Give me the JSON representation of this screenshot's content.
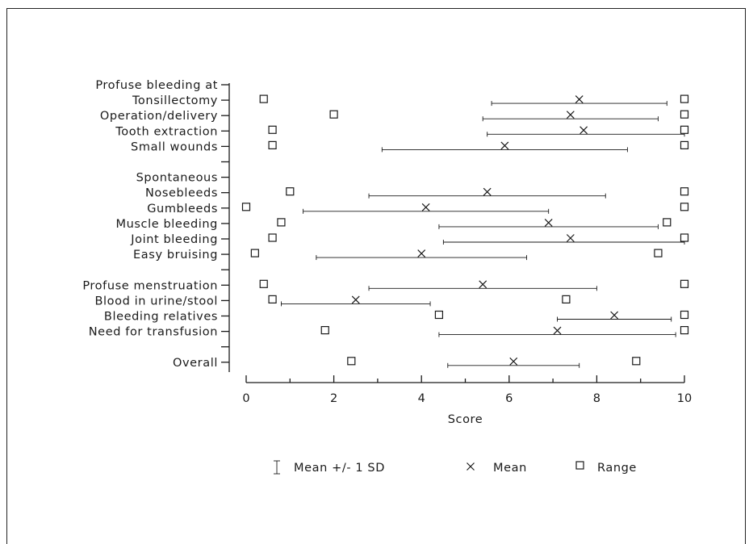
{
  "chart_data": {
    "type": "scatter",
    "xlabel": "Score",
    "xlim": [
      0,
      10
    ],
    "xticks": [
      "0",
      "2",
      "4",
      "6",
      "8",
      "10"
    ],
    "legend": {
      "placement": "bottom",
      "items": [
        {
          "symbol": "I",
          "label": "Mean +/- 1 SD"
        },
        {
          "symbol": "×",
          "label": "Mean"
        },
        {
          "symbol": "□",
          "label": "Range"
        }
      ]
    },
    "rows": [
      {
        "label": "Profuse bleeding at"
      },
      {
        "label": "Tonsillectomy",
        "mean": 7.6,
        "sd_low": 5.6,
        "sd_high": 9.6,
        "min": 0.4,
        "max": 10
      },
      {
        "label": "Operation/delivery",
        "mean": 7.4,
        "sd_low": 5.4,
        "sd_high": 9.4,
        "min": 2.0,
        "max": 10
      },
      {
        "label": "Tooth extraction",
        "mean": 7.7,
        "sd_low": 5.5,
        "sd_high": 10,
        "min": 0.6,
        "max": 10
      },
      {
        "label": "Small wounds",
        "mean": 5.9,
        "sd_low": 3.1,
        "sd_high": 8.7,
        "min": 0.6,
        "max": 10
      },
      {
        "label": ""
      },
      {
        "label": "Spontaneous"
      },
      {
        "label": "Nosebleeds",
        "mean": 5.5,
        "sd_low": 2.8,
        "sd_high": 8.2,
        "min": 1.0,
        "max": 10
      },
      {
        "label": "Gumbleeds",
        "mean": 4.1,
        "sd_low": 1.3,
        "sd_high": 6.9,
        "min": 0.0,
        "max": 10
      },
      {
        "label": "Muscle bleeding",
        "mean": 6.9,
        "sd_low": 4.4,
        "sd_high": 9.4,
        "min": 0.8,
        "max": 9.6
      },
      {
        "label": "Joint bleeding",
        "mean": 7.4,
        "sd_low": 4.5,
        "sd_high": 10,
        "min": 0.6,
        "max": 10
      },
      {
        "label": "Easy bruising",
        "mean": 4.0,
        "sd_low": 1.6,
        "sd_high": 6.4,
        "min": 0.2,
        "max": 9.4
      },
      {
        "label": ""
      },
      {
        "label": "Profuse menstruation",
        "mean": 5.4,
        "sd_low": 2.8,
        "sd_high": 8.0,
        "min": 0.4,
        "max": 10
      },
      {
        "label": "Blood in urine/stool",
        "mean": 2.5,
        "sd_low": 0.8,
        "sd_high": 4.2,
        "min": 0.6,
        "max": 7.3
      },
      {
        "label": "Bleeding relatives",
        "mean": 8.4,
        "sd_low": 7.1,
        "sd_high": 9.7,
        "min": 4.4,
        "max": 10
      },
      {
        "label": "Need for transfusion",
        "mean": 7.1,
        "sd_low": 4.4,
        "sd_high": 9.8,
        "min": 1.8,
        "max": 10
      },
      {
        "label": ""
      },
      {
        "label": "Overall",
        "mean": 6.1,
        "sd_low": 4.6,
        "sd_high": 7.6,
        "min": 2.4,
        "max": 8.9
      }
    ]
  }
}
